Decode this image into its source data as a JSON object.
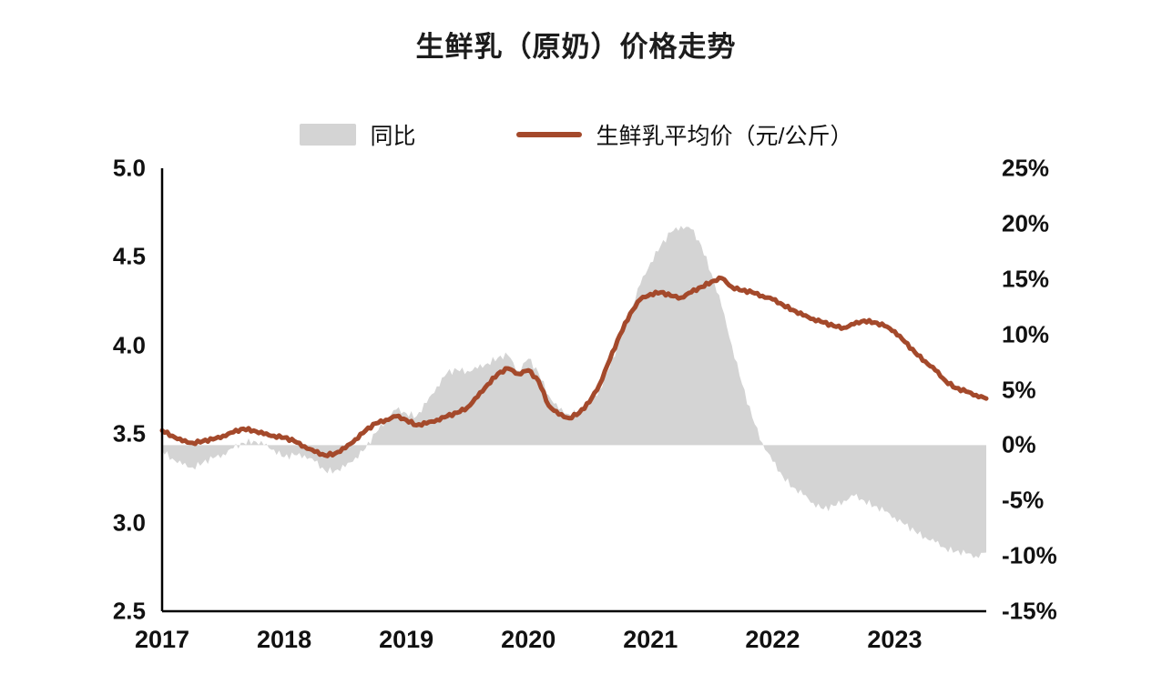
{
  "page": {
    "background": "#ffffff"
  },
  "chart_data": {
    "type": "combo",
    "title": "生鲜乳（原奶）价格走势",
    "legend_position": "top",
    "x_axis": {
      "tick_labels": [
        "2017",
        "2018",
        "2019",
        "2020",
        "2021",
        "2022",
        "2023"
      ],
      "start": "2017-01",
      "end": "2023-10",
      "frequency": "monthly"
    },
    "left_axis": {
      "range": [
        2.5,
        5.0
      ],
      "ticks": [
        "5.0",
        "4.5",
        "4.0",
        "3.5",
        "3.0",
        "2.5"
      ],
      "tick_values": [
        5.0,
        4.5,
        4.0,
        3.5,
        3.0,
        2.5
      ]
    },
    "right_axis": {
      "range": [
        -15,
        25
      ],
      "ticks": [
        "25%",
        "20%",
        "15%",
        "10%",
        "5%",
        "0%",
        "-5%",
        "-10%",
        "-15%"
      ],
      "tick_values": [
        25,
        20,
        15,
        10,
        5,
        0,
        -5,
        -10,
        -15
      ]
    },
    "series": [
      {
        "name": "同比",
        "type": "area",
        "axis": "right",
        "color": "#d4d4d4",
        "values": [
          -0.5,
          -1.2,
          -1.8,
          -2.0,
          -1.6,
          -1.2,
          -0.8,
          -0.3,
          0.2,
          0.4,
          0.0,
          -0.4,
          -1.1,
          -0.9,
          -0.9,
          -1.5,
          -2.3,
          -2.3,
          -2.0,
          -1.1,
          -0.3,
          1.1,
          2.3,
          3.2,
          2.9,
          2.6,
          3.8,
          5.3,
          6.5,
          6.8,
          6.7,
          6.9,
          7.4,
          7.9,
          8.1,
          6.7,
          7.8,
          6.5,
          4.5,
          3.2,
          2.8,
          3.0,
          3.8,
          5.0,
          7.0,
          9.5,
          12.0,
          14.5,
          16.5,
          18.0,
          19.2,
          19.8,
          19.5,
          18.0,
          15.5,
          12.5,
          9.0,
          5.5,
          2.5,
          0.2,
          -1.5,
          -2.8,
          -3.8,
          -4.5,
          -5.2,
          -5.8,
          -5.5,
          -5.0,
          -4.6,
          -5.0,
          -5.5,
          -6.0,
          -6.5,
          -7.2,
          -7.8,
          -8.3,
          -8.8,
          -9.3,
          -9.6,
          -9.8,
          -10.0,
          -9.7
        ]
      },
      {
        "name": "生鲜乳平均价（元/公斤）",
        "type": "line",
        "axis": "left",
        "color": "#a4492b",
        "values": [
          3.52,
          3.49,
          3.46,
          3.45,
          3.46,
          3.47,
          3.49,
          3.51,
          3.53,
          3.52,
          3.5,
          3.49,
          3.48,
          3.46,
          3.43,
          3.4,
          3.38,
          3.39,
          3.42,
          3.47,
          3.52,
          3.56,
          3.58,
          3.6,
          3.58,
          3.55,
          3.56,
          3.58,
          3.6,
          3.62,
          3.65,
          3.71,
          3.78,
          3.84,
          3.87,
          3.84,
          3.86,
          3.8,
          3.66,
          3.61,
          3.59,
          3.62,
          3.68,
          3.78,
          3.92,
          4.06,
          4.18,
          4.26,
          4.29,
          4.3,
          4.28,
          4.27,
          4.3,
          4.33,
          4.36,
          4.38,
          4.33,
          4.31,
          4.3,
          4.28,
          4.26,
          4.23,
          4.2,
          4.17,
          4.15,
          4.13,
          4.11,
          4.1,
          4.12,
          4.14,
          4.13,
          4.11,
          4.08,
          4.02,
          3.96,
          3.91,
          3.86,
          3.8,
          3.76,
          3.74,
          3.72,
          3.7
        ]
      }
    ]
  }
}
